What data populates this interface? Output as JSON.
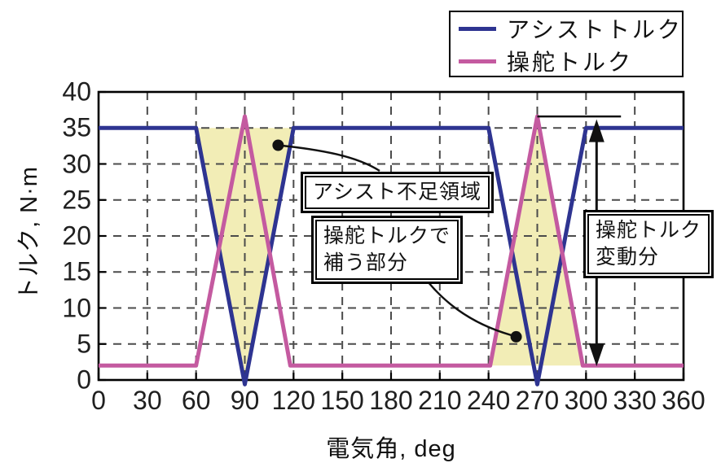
{
  "chart_data": {
    "type": "line",
    "title": "",
    "xlabel": "電気角, deg",
    "ylabel": "トルク, N·m",
    "xlim": [
      0,
      360
    ],
    "ylim": [
      0,
      40
    ],
    "xticks": [
      0,
      30,
      60,
      90,
      120,
      150,
      180,
      210,
      240,
      270,
      300,
      330,
      360
    ],
    "yticks": [
      0,
      5,
      10,
      15,
      20,
      25,
      30,
      35,
      40
    ],
    "grid": "dashed",
    "legend_position": "top-right",
    "series": [
      {
        "name": "アシストトルク",
        "color": "#2e3491",
        "width": 5,
        "points": [
          [
            0,
            35
          ],
          [
            60,
            35
          ],
          [
            90,
            -0.6
          ],
          [
            120,
            35
          ],
          [
            240,
            35
          ],
          [
            270,
            -0.6
          ],
          [
            300,
            35
          ],
          [
            360,
            35
          ]
        ]
      },
      {
        "name": "操舵トルク",
        "color": "#c45aa0",
        "width": 5,
        "points": [
          [
            0,
            2
          ],
          [
            60,
            2
          ],
          [
            90,
            36.6
          ],
          [
            118,
            2
          ],
          [
            241,
            2
          ],
          [
            270,
            36.6
          ],
          [
            298,
            2
          ],
          [
            360,
            2
          ]
        ]
      }
    ],
    "shaded_regions": [
      {
        "name": "assist-shortage-shade",
        "color": "#f2edb6",
        "polygon": [
          [
            60,
            35
          ],
          [
            120,
            35
          ],
          [
            90,
            0
          ]
        ]
      },
      {
        "name": "steering-compensation-shade",
        "color": "#f2edb6",
        "polygon": [
          [
            241,
            2
          ],
          [
            270,
            36.6
          ],
          [
            298,
            2
          ]
        ]
      }
    ],
    "annotations": {
      "assist_shortage_label": "アシスト不足領域",
      "compensation_label_line1": "操舵トルクで",
      "compensation_label_line2": "補う部分",
      "variation_label_line1": "操舵トルク",
      "variation_label_line2": "変動分",
      "callout_dots": [
        [
          110.5,
          32.6
        ],
        [
          257.0,
          6.0
        ]
      ],
      "ref_line": {
        "from": [
          270,
          36.6
        ],
        "to": [
          321.5,
          36.6
        ]
      },
      "variation_arrow": {
        "x_deg": 306.5,
        "y_top": 36.2,
        "y_bottom": 1.9
      }
    }
  },
  "colors": {
    "assist_line": "#2e3491",
    "steering_line": "#c45aa0",
    "shade": "#f2edb6",
    "grid": "#4b4b4b",
    "axis": "#000000",
    "annotation_line": "#111111",
    "text": "#1a1a1a",
    "background": "#ffffff"
  }
}
